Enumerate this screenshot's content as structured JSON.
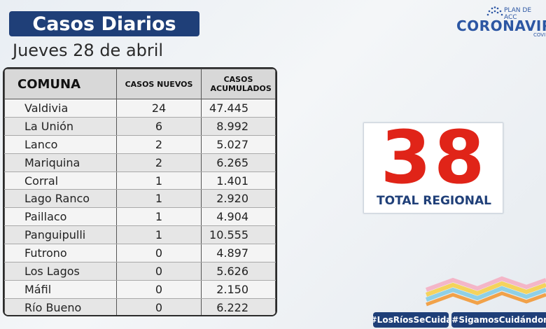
{
  "header": {
    "title": "Casos Diarios",
    "date": "Jueves 28 de abril"
  },
  "logo": {
    "plan": "PLAN DE ACC",
    "brand": "CORONAVIRU",
    "sub": "COVI"
  },
  "table": {
    "headers": [
      "COMUNA",
      "CASOS NUEVOS",
      "CASOS ACUMULADOS"
    ],
    "rows": [
      {
        "comuna": "Valdivia",
        "nuevos": "24",
        "acumulados": "47.445"
      },
      {
        "comuna": "La Unión",
        "nuevos": "6",
        "acumulados": "8.992"
      },
      {
        "comuna": "Lanco",
        "nuevos": "2",
        "acumulados": "5.027"
      },
      {
        "comuna": "Mariquina",
        "nuevos": "2",
        "acumulados": "6.265"
      },
      {
        "comuna": "Corral",
        "nuevos": "1",
        "acumulados": "1.401"
      },
      {
        "comuna": "Lago Ranco",
        "nuevos": "1",
        "acumulados": "2.920"
      },
      {
        "comuna": "Paillaco",
        "nuevos": "1",
        "acumulados": "4.904"
      },
      {
        "comuna": "Panguipulli",
        "nuevos": "1",
        "acumulados": "10.555"
      },
      {
        "comuna": "Futrono",
        "nuevos": "0",
        "acumulados": "4.897"
      },
      {
        "comuna": "Los Lagos",
        "nuevos": "0",
        "acumulados": "5.626"
      },
      {
        "comuna": "Máfil",
        "nuevos": "0",
        "acumulados": "2.150"
      },
      {
        "comuna": "Río Bueno",
        "nuevos": "0",
        "acumulados": "6.222"
      }
    ]
  },
  "total": {
    "value": "38",
    "label": "TOTAL REGIONAL"
  },
  "hashtags": [
    "#LosRíosSeCuida",
    "#SigamosCuidándon"
  ],
  "colors": {
    "navy": "#1f3f78",
    "red": "#e02418",
    "brand_blue": "#2c56a3"
  }
}
